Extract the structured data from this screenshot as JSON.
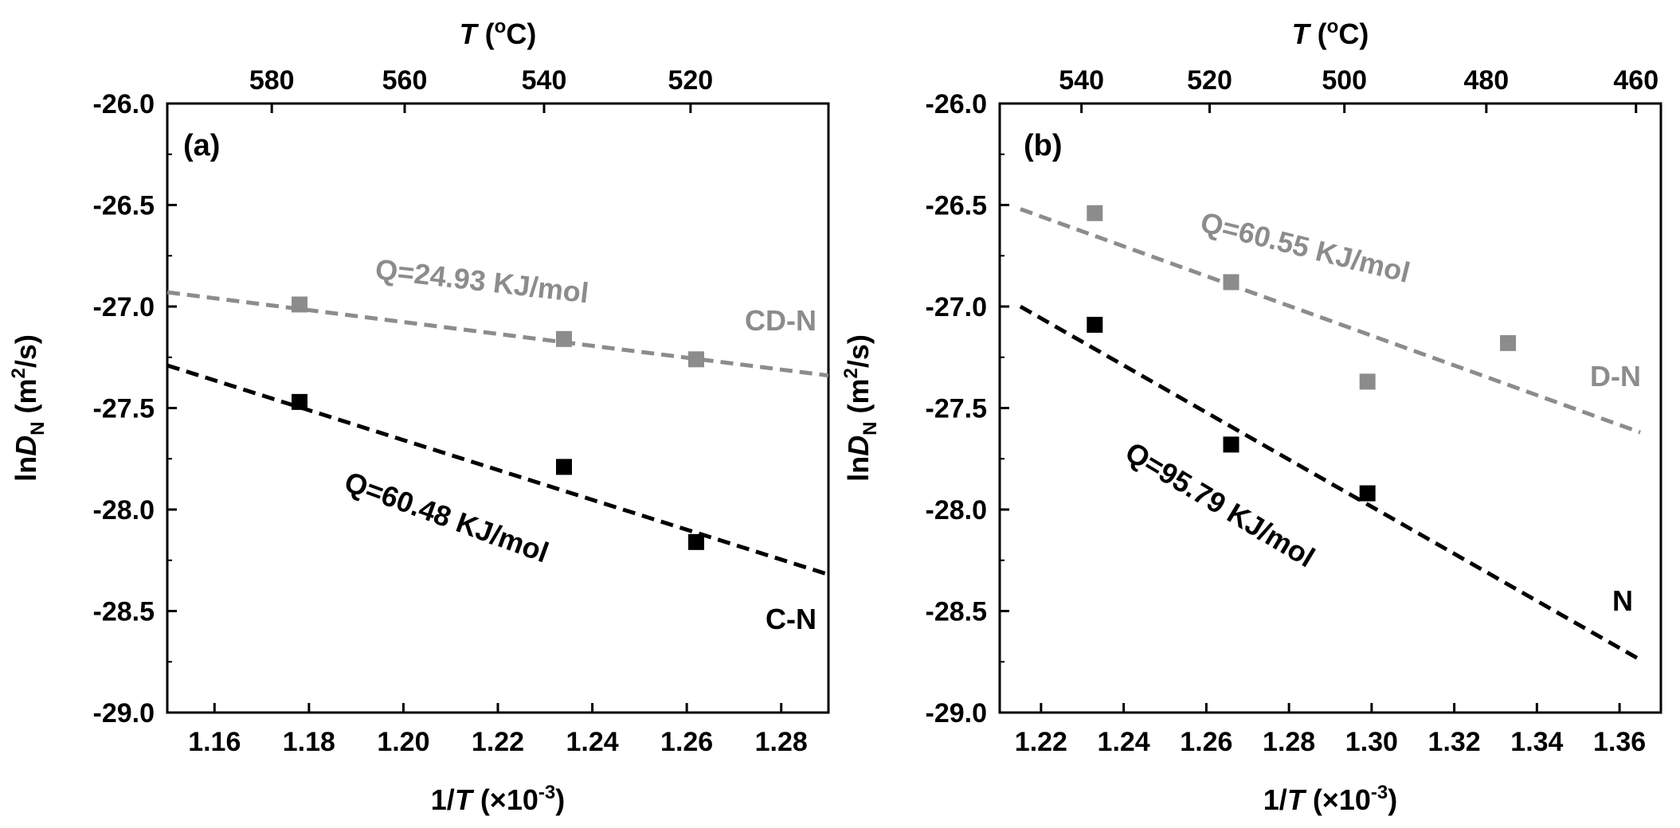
{
  "chart_data": [
    {
      "type": "scatter",
      "panel_label": "(a)",
      "xlabel_prefix": "1/",
      "xlabel_var": "T",
      "xlabel_suffix": " (×10",
      "xlabel_exp": "-3",
      "xlabel_close": ")",
      "ylabel_prefix": "ln",
      "ylabel_var": "D",
      "ylabel_sub": "N",
      "ylabel_unit_open": " (m",
      "ylabel_unit_exp": "2",
      "ylabel_unit_close": "/s)",
      "top_label_var": "T",
      "top_label_open": " (",
      "top_label_sup": "o",
      "top_label_close": "C)",
      "xlim": [
        1.15,
        1.29
      ],
      "ylim": [
        -29.0,
        -26.0
      ],
      "xticks": [
        "1.16",
        "1.18",
        "1.20",
        "1.22",
        "1.24",
        "1.26",
        "1.28"
      ],
      "xtick_values": [
        1.16,
        1.18,
        1.2,
        1.22,
        1.24,
        1.26,
        1.28
      ],
      "yticks": [
        "-26.0",
        "-26.5",
        "-27.0",
        "-27.5",
        "-28.0",
        "-28.5",
        "-29.0"
      ],
      "ytick_values": [
        -26.0,
        -26.5,
        -27.0,
        -27.5,
        -28.0,
        -28.5,
        -29.0
      ],
      "top_ticks": [
        "580",
        "560",
        "540",
        "520"
      ],
      "top_tick_celsius": [
        580,
        560,
        540,
        520
      ],
      "series": [
        {
          "name": "CD-N",
          "color": "#8c8c8c",
          "x": [
            1.178,
            1.234,
            1.262
          ],
          "y": [
            -26.99,
            -27.16,
            -27.26
          ],
          "fit": [
            [
              1.15,
              -26.93
            ],
            [
              1.29,
              -27.34
            ]
          ],
          "annotation": "Q=24.93 KJ/mol"
        },
        {
          "name": "C-N",
          "color": "#000000",
          "x": [
            1.178,
            1.234,
            1.262
          ],
          "y": [
            -27.47,
            -27.79,
            -28.16
          ],
          "fit": [
            [
              1.15,
              -27.29
            ],
            [
              1.29,
              -28.32
            ]
          ],
          "annotation": "Q=60.48 KJ/mol"
        }
      ]
    },
    {
      "type": "scatter",
      "panel_label": "(b)",
      "xlabel_prefix": "1/",
      "xlabel_var": "T",
      "xlabel_suffix": " (×10",
      "xlabel_exp": "-3",
      "xlabel_close": ")",
      "ylabel_prefix": "ln",
      "ylabel_var": "D",
      "ylabel_sub": "N",
      "ylabel_unit_open": " (m",
      "ylabel_unit_exp": "2",
      "ylabel_unit_close": "/s)",
      "top_label_var": "T",
      "top_label_open": " (",
      "top_label_sup": "o",
      "top_label_close": "C)",
      "xlim": [
        1.21,
        1.37
      ],
      "ylim": [
        -29.0,
        -26.0
      ],
      "xticks": [
        "1.22",
        "1.24",
        "1.26",
        "1.28",
        "1.30",
        "1.32",
        "1.34",
        "1.36"
      ],
      "xtick_values": [
        1.22,
        1.24,
        1.26,
        1.28,
        1.3,
        1.32,
        1.34,
        1.36
      ],
      "yticks": [
        "-26.0",
        "-26.5",
        "-27.0",
        "-27.5",
        "-28.0",
        "-28.5",
        "-29.0"
      ],
      "ytick_values": [
        -26.0,
        -26.5,
        -27.0,
        -27.5,
        -28.0,
        -28.5,
        -29.0
      ],
      "top_ticks": [
        "540",
        "520",
        "500",
        "480",
        "460"
      ],
      "top_tick_celsius": [
        540,
        520,
        500,
        480,
        460
      ],
      "series": [
        {
          "name": "D-N",
          "color": "#8c8c8c",
          "x": [
            1.233,
            1.266,
            1.299,
            1.333
          ],
          "y": [
            -26.54,
            -26.88,
            -27.37,
            -27.18
          ],
          "fit": [
            [
              1.215,
              -26.52
            ],
            [
              1.365,
              -27.62
            ]
          ],
          "annotation": "Q=60.55 KJ/mol"
        },
        {
          "name": "N",
          "color": "#000000",
          "x": [
            1.233,
            1.266,
            1.299
          ],
          "y": [
            -27.09,
            -27.68,
            -27.92
          ],
          "fit": [
            [
              1.215,
              -27.0
            ],
            [
              1.365,
              -28.74
            ]
          ],
          "annotation": "Q=95.79 KJ/mol"
        }
      ]
    }
  ]
}
